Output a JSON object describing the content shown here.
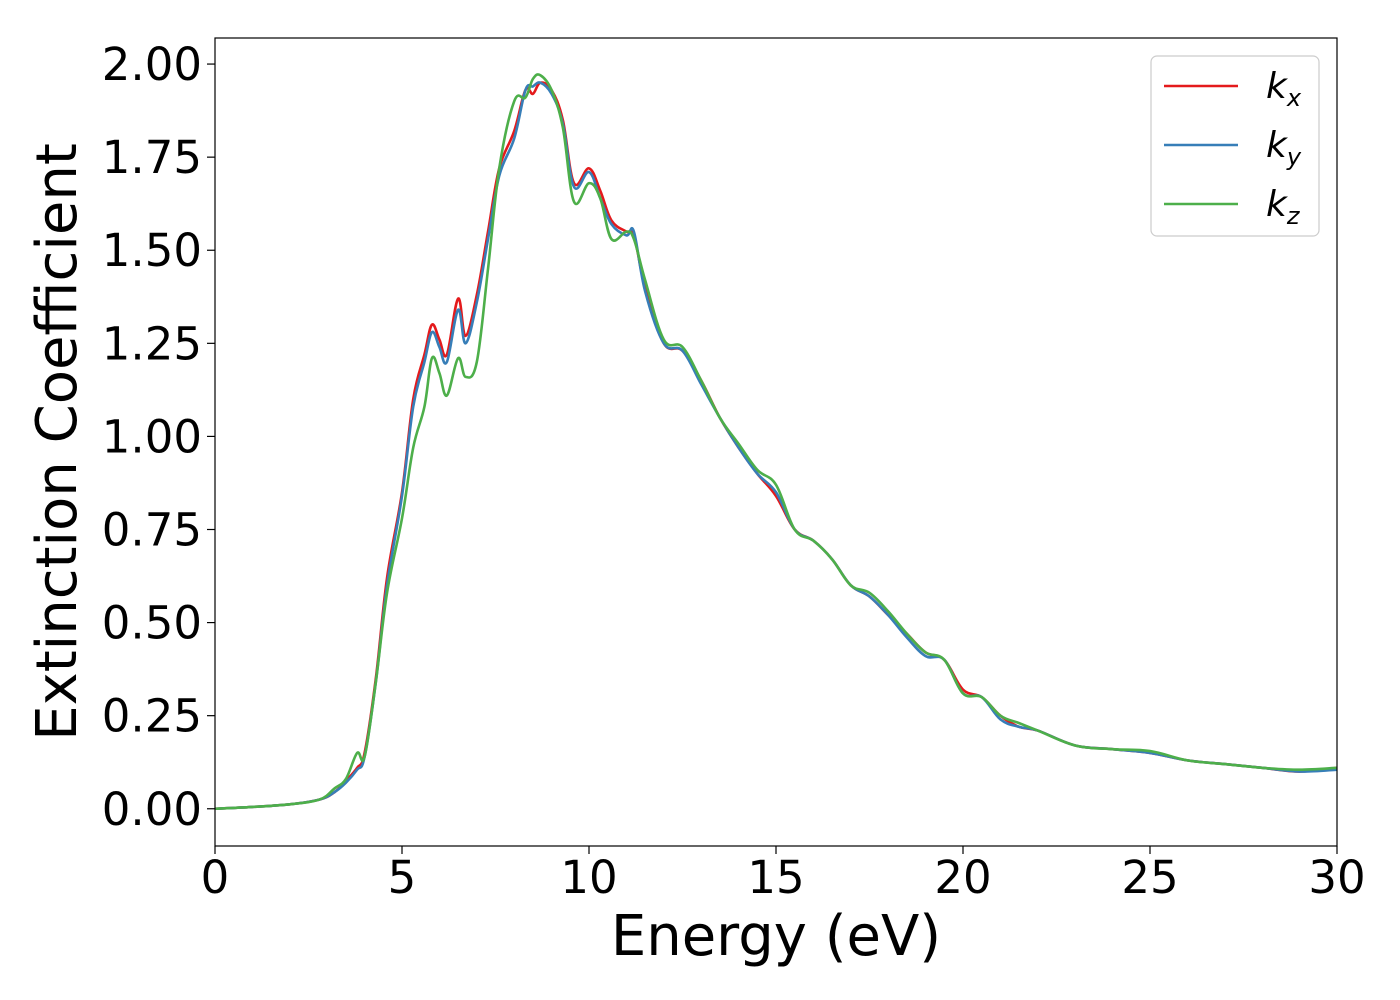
{
  "chart_data": {
    "type": "line",
    "title": "",
    "xlabel": "Energy (eV)",
    "ylabel": "Extinction Coefficient",
    "xlim": [
      0,
      30
    ],
    "ylim": [
      -0.1,
      2.07
    ],
    "xticks": [
      0,
      5,
      10,
      15,
      20,
      25,
      30
    ],
    "xtick_labels": [
      "0",
      "5",
      "10",
      "15",
      "20",
      "25",
      "30"
    ],
    "yticks": [
      0,
      0.25,
      0.5,
      0.75,
      1.0,
      1.25,
      1.5,
      1.75,
      2.0
    ],
    "ytick_labels": [
      "0.00",
      "0.25",
      "0.50",
      "0.75",
      "1.00",
      "1.25",
      "1.50",
      "1.75",
      "2.00"
    ],
    "grid": false,
    "legend_position": "top-right",
    "x": [
      0,
      1,
      2,
      2.8,
      3.2,
      3.5,
      3.8,
      4.0,
      4.3,
      4.6,
      5.0,
      5.3,
      5.6,
      5.8,
      6.0,
      6.2,
      6.5,
      6.7,
      7.0,
      7.3,
      7.6,
      8.0,
      8.3,
      8.5,
      8.7,
      9.0,
      9.3,
      9.6,
      10.0,
      10.3,
      10.6,
      11.0,
      11.2,
      11.5,
      12.0,
      12.5,
      13.0,
      13.5,
      14.0,
      14.5,
      15.0,
      15.5,
      16.0,
      16.5,
      17.0,
      17.5,
      18.0,
      18.5,
      19.0,
      19.5,
      20.0,
      20.5,
      21.0,
      21.5,
      22.0,
      23.0,
      24.0,
      25.0,
      26.0,
      27.0,
      28.0,
      29.0,
      30.0
    ],
    "series": [
      {
        "name": "k",
        "subscript": "x",
        "color": "#e41a1c",
        "values": [
          0,
          0.005,
          0.012,
          0.025,
          0.045,
          0.075,
          0.11,
          0.15,
          0.35,
          0.62,
          0.85,
          1.1,
          1.22,
          1.3,
          1.26,
          1.22,
          1.37,
          1.27,
          1.38,
          1.55,
          1.72,
          1.82,
          1.93,
          1.92,
          1.95,
          1.93,
          1.85,
          1.68,
          1.72,
          1.66,
          1.58,
          1.55,
          1.54,
          1.4,
          1.25,
          1.23,
          1.15,
          1.05,
          0.97,
          0.9,
          0.84,
          0.75,
          0.72,
          0.67,
          0.6,
          0.57,
          0.52,
          0.47,
          0.42,
          0.4,
          0.32,
          0.3,
          0.25,
          0.22,
          0.21,
          0.17,
          0.16,
          0.15,
          0.13,
          0.12,
          0.11,
          0.1,
          0.11
        ]
      },
      {
        "name": "k",
        "subscript": "y",
        "color": "#377eb8",
        "values": [
          0,
          0.005,
          0.012,
          0.025,
          0.045,
          0.07,
          0.105,
          0.14,
          0.34,
          0.6,
          0.84,
          1.08,
          1.2,
          1.28,
          1.24,
          1.2,
          1.34,
          1.25,
          1.36,
          1.53,
          1.7,
          1.8,
          1.93,
          1.94,
          1.95,
          1.92,
          1.84,
          1.67,
          1.71,
          1.64,
          1.57,
          1.54,
          1.55,
          1.39,
          1.25,
          1.23,
          1.14,
          1.05,
          0.97,
          0.9,
          0.85,
          0.75,
          0.72,
          0.67,
          0.6,
          0.57,
          0.52,
          0.46,
          0.41,
          0.4,
          0.31,
          0.3,
          0.24,
          0.22,
          0.21,
          0.17,
          0.16,
          0.15,
          0.13,
          0.12,
          0.11,
          0.1,
          0.105
        ]
      },
      {
        "name": "k",
        "subscript": "z",
        "color": "#4daf4a",
        "values": [
          0,
          0.005,
          0.012,
          0.025,
          0.055,
          0.08,
          0.15,
          0.14,
          0.34,
          0.58,
          0.78,
          0.97,
          1.08,
          1.21,
          1.17,
          1.11,
          1.21,
          1.16,
          1.2,
          1.45,
          1.72,
          1.9,
          1.91,
          1.96,
          1.97,
          1.93,
          1.83,
          1.63,
          1.68,
          1.64,
          1.53,
          1.55,
          1.53,
          1.42,
          1.26,
          1.24,
          1.15,
          1.05,
          0.98,
          0.91,
          0.87,
          0.75,
          0.72,
          0.67,
          0.6,
          0.58,
          0.53,
          0.47,
          0.42,
          0.4,
          0.31,
          0.3,
          0.25,
          0.23,
          0.21,
          0.17,
          0.16,
          0.155,
          0.13,
          0.12,
          0.11,
          0.105,
          0.11
        ]
      }
    ]
  }
}
